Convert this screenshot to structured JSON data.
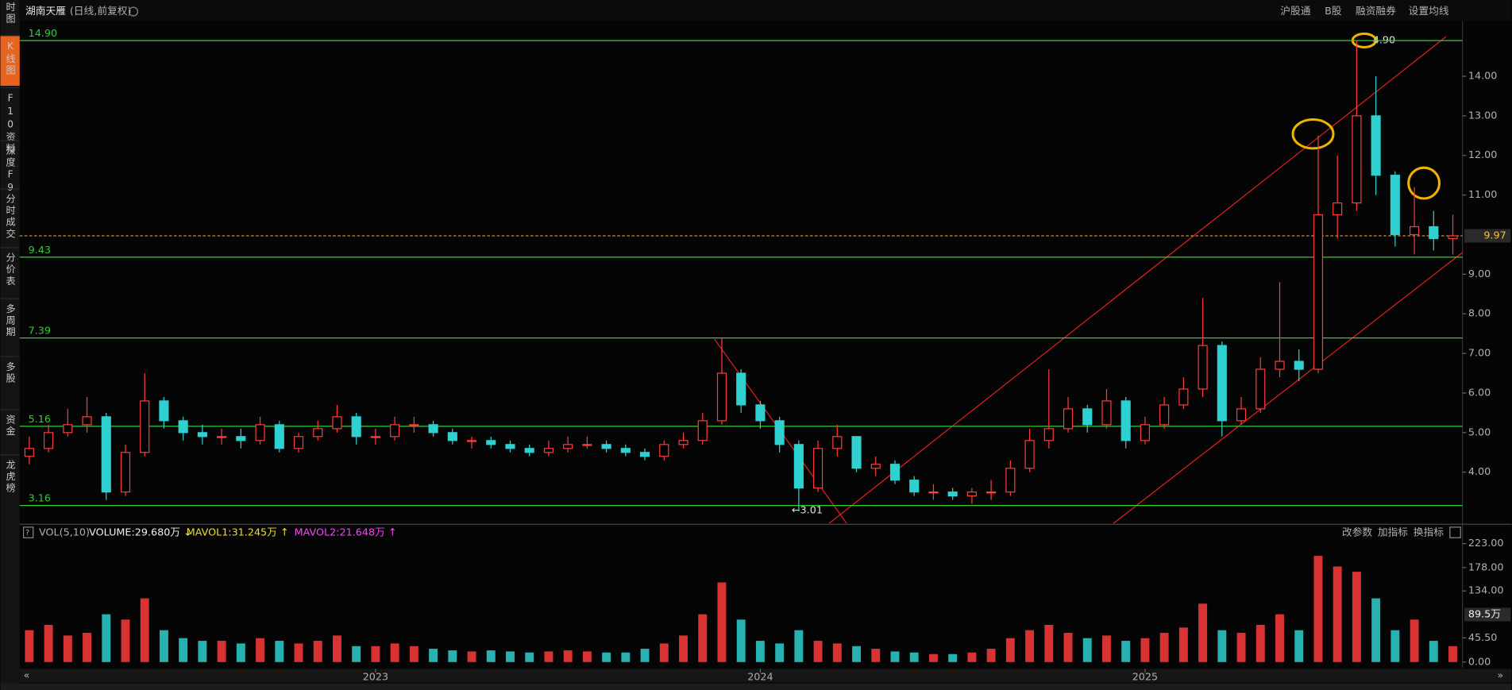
{
  "toolbar": {
    "stock": "湖南天雁",
    "mode": "(日线,前复权)",
    "links": [
      "沪股通",
      "B股",
      "融资融券",
      "设置均线"
    ]
  },
  "sidebar": [
    "时图",
    "K线图",
    "F10资料",
    "深度F9",
    "分时成交",
    "分价表",
    "多周期",
    "多股",
    "资金",
    "龙虎榜"
  ],
  "indicator_header": {
    "left": [
      "VOL(5,10)",
      "VOLUME:29.680万 ↓",
      "MAVOL1:31.245万 ↑",
      "MAVOL2:21.648万 ↑"
    ],
    "right": [
      "改参数",
      "加指标",
      "换指标"
    ]
  },
  "chart_data": [
    {
      "type": "candlestick",
      "categories": [
        null,
        null,
        null,
        null,
        null,
        null,
        null,
        null,
        null,
        null,
        null,
        null,
        null,
        null,
        null,
        null,
        null,
        null,
        "2023",
        null,
        null,
        null,
        null,
        null,
        null,
        null,
        null,
        null,
        null,
        null,
        null,
        null,
        null,
        null,
        null,
        null,
        null,
        null,
        "2024",
        null,
        null,
        null,
        null,
        null,
        null,
        null,
        null,
        null,
        null,
        null,
        null,
        null,
        null,
        null,
        null,
        null,
        null,
        null,
        "2025",
        null,
        null,
        null,
        null,
        null,
        null,
        null,
        null,
        null,
        null,
        null,
        null,
        null,
        null,
        null,
        null
      ],
      "open": [
        4.4,
        4.6,
        5.0,
        5.2,
        5.4,
        3.5,
        4.5,
        5.8,
        5.3,
        5.0,
        4.9,
        4.9,
        4.8,
        5.2,
        4.6,
        4.9,
        5.1,
        5.4,
        4.9,
        4.9,
        5.2,
        5.2,
        5.0,
        4.8,
        4.8,
        4.7,
        4.6,
        4.5,
        4.6,
        4.7,
        4.7,
        4.6,
        4.5,
        4.4,
        4.7,
        4.8,
        5.3,
        6.5,
        5.7,
        5.3,
        4.7,
        3.6,
        4.6,
        4.9,
        4.1,
        4.2,
        3.8,
        3.5,
        3.5,
        3.4,
        3.5,
        3.5,
        4.1,
        4.8,
        5.1,
        5.6,
        5.2,
        5.8,
        4.8,
        5.2,
        5.7,
        6.1,
        7.2,
        5.3,
        5.6,
        6.6,
        6.8,
        6.6,
        10.5,
        10.8,
        13.0,
        11.5,
        10.0,
        10.2,
        9.9
      ],
      "high": [
        4.9,
        5.2,
        5.6,
        5.9,
        5.5,
        4.7,
        6.5,
        5.9,
        5.4,
        5.2,
        5.1,
        5.1,
        5.4,
        5.3,
        5.0,
        5.3,
        5.7,
        5.5,
        5.1,
        5.4,
        5.4,
        5.3,
        5.1,
        4.9,
        4.9,
        4.8,
        4.7,
        4.8,
        4.9,
        4.9,
        4.8,
        4.7,
        4.6,
        4.8,
        5.0,
        5.5,
        7.39,
        6.6,
        5.8,
        5.4,
        4.8,
        4.8,
        5.2,
        4.9,
        4.4,
        4.3,
        3.9,
        3.7,
        3.6,
        3.6,
        3.8,
        4.3,
        5.1,
        6.6,
        5.9,
        5.7,
        6.1,
        5.9,
        5.4,
        5.9,
        6.4,
        8.4,
        7.3,
        5.9,
        6.9,
        8.8,
        7.1,
        12.5,
        12.0,
        14.9,
        14.0,
        11.6,
        11.2,
        10.6,
        10.5
      ],
      "low": [
        4.2,
        4.5,
        4.9,
        5.0,
        3.3,
        3.4,
        4.4,
        5.1,
        4.8,
        4.7,
        4.7,
        4.6,
        4.7,
        4.5,
        4.5,
        4.8,
        5.0,
        4.7,
        4.7,
        4.8,
        5.0,
        4.9,
        4.7,
        4.6,
        4.6,
        4.5,
        4.4,
        4.4,
        4.5,
        4.6,
        4.5,
        4.4,
        4.3,
        4.3,
        4.6,
        4.7,
        5.2,
        5.5,
        5.1,
        4.5,
        3.01,
        3.5,
        4.4,
        4.0,
        3.9,
        3.7,
        3.4,
        3.3,
        3.3,
        3.2,
        3.3,
        3.4,
        4.0,
        4.6,
        5.0,
        5.0,
        5.1,
        4.6,
        4.7,
        5.1,
        5.6,
        5.9,
        4.9,
        5.2,
        5.5,
        6.4,
        6.3,
        6.5,
        9.9,
        10.6,
        11.0,
        9.7,
        9.5,
        9.6,
        9.5
      ],
      "close": [
        4.6,
        5.0,
        5.2,
        5.4,
        3.5,
        4.5,
        5.8,
        5.3,
        5.0,
        4.9,
        4.9,
        4.8,
        5.2,
        4.6,
        4.9,
        5.1,
        5.4,
        4.9,
        4.9,
        5.2,
        5.2,
        5.0,
        4.8,
        4.8,
        4.7,
        4.6,
        4.5,
        4.6,
        4.7,
        4.7,
        4.6,
        4.5,
        4.4,
        4.7,
        4.8,
        5.3,
        6.5,
        5.7,
        5.3,
        4.7,
        3.6,
        4.6,
        4.9,
        4.1,
        4.2,
        3.8,
        3.5,
        3.5,
        3.4,
        3.5,
        3.5,
        4.1,
        4.8,
        5.1,
        5.6,
        5.2,
        5.8,
        4.8,
        5.2,
        5.7,
        6.1,
        7.2,
        5.3,
        5.6,
        6.6,
        6.8,
        6.6,
        10.5,
        10.8,
        13.0,
        11.5,
        10.0,
        10.2,
        9.9,
        9.97
      ],
      "up_color": "#ff3b3b",
      "down_color": "#2fd0d0",
      "ylim": [
        2.71,
        15.39
      ],
      "yticks": [
        {
          "value": 4,
          "label": "4.00"
        },
        {
          "value": 5,
          "label": "5.00"
        },
        {
          "value": 6,
          "label": "6.00"
        },
        {
          "value": 7,
          "label": "7.00"
        },
        {
          "value": 8,
          "label": "8.00"
        },
        {
          "value": 9,
          "label": "9.00"
        },
        {
          "value": 11,
          "label": "11.00"
        },
        {
          "value": 12,
          "label": "12.00"
        },
        {
          "value": 13,
          "label": "13.00"
        },
        {
          "value": 14,
          "label": "14.00"
        }
      ],
      "levels": [
        {
          "value": 14.9,
          "label": "14.90"
        },
        {
          "value": 9.43,
          "label": "9.43"
        },
        {
          "value": 7.39,
          "label": "7.39"
        },
        {
          "value": 5.16,
          "label": "5.16"
        },
        {
          "value": 3.16,
          "label": "3.16"
        }
      ],
      "level_color": "#2ed02e",
      "current_price": {
        "value": 9.97,
        "label": "9.97"
      },
      "annotations": [
        "4.90",
        "←3.01"
      ]
    },
    {
      "type": "bar",
      "values": [
        60,
        70,
        50,
        55,
        90,
        80,
        120,
        60,
        45,
        40,
        40,
        35,
        45,
        40,
        35,
        40,
        50,
        30,
        30,
        35,
        30,
        25,
        22,
        20,
        22,
        20,
        18,
        20,
        22,
        20,
        18,
        18,
        25,
        35,
        50,
        90,
        150,
        80,
        40,
        35,
        60,
        40,
        35,
        30,
        25,
        20,
        18,
        15,
        15,
        18,
        25,
        45,
        60,
        70,
        55,
        45,
        50,
        40,
        45,
        55,
        65,
        110,
        60,
        55,
        70,
        90,
        60,
        200,
        180,
        170,
        120,
        60,
        80,
        40,
        30
      ],
      "ylim": [
        0,
        236
      ],
      "yticks": [
        {
          "value": 0,
          "label": "0.00"
        },
        {
          "value": 45.5,
          "label": "45.50"
        },
        {
          "value": 134,
          "label": "134.00"
        },
        {
          "value": 178,
          "label": "178.00"
        },
        {
          "value": 223,
          "label": "223.00"
        }
      ],
      "current_marker": {
        "value": 89.5,
        "label": "89.5万"
      }
    }
  ]
}
